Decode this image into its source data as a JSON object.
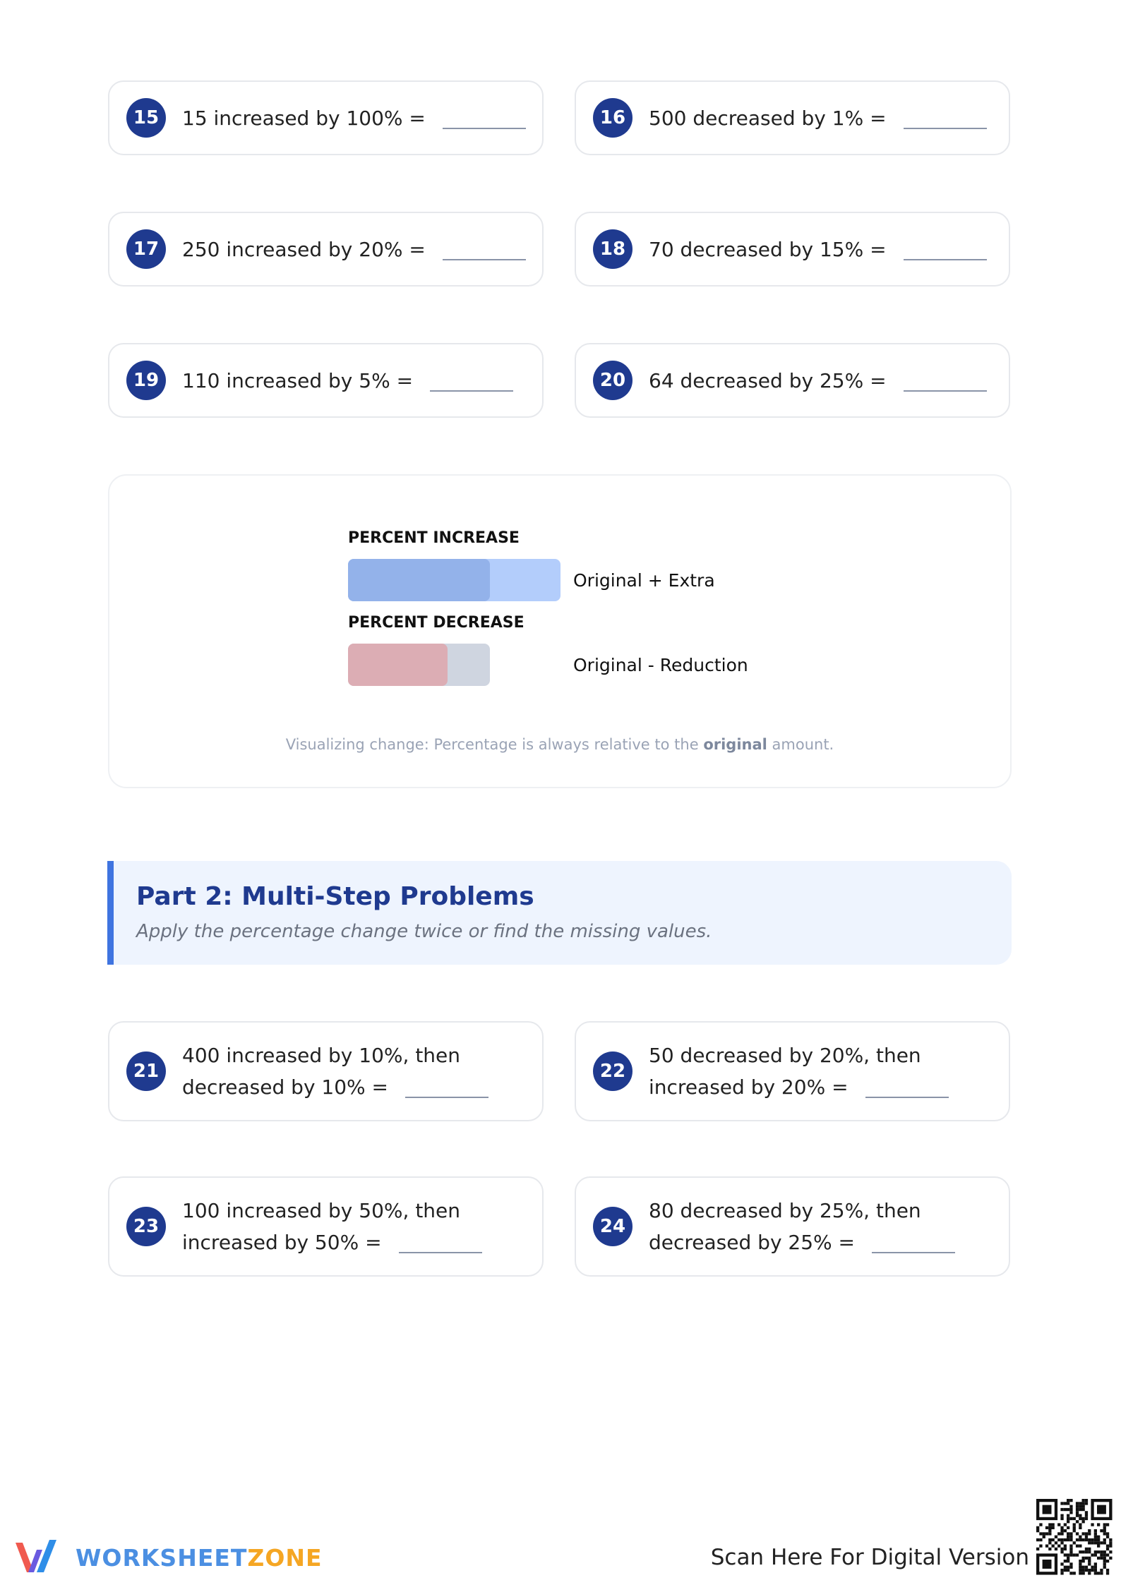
{
  "problems_part1": [
    {
      "number": "15",
      "lines": [
        "15 increased by 100% ="
      ]
    },
    {
      "number": "16",
      "lines": [
        "500 decreased by 1% ="
      ]
    },
    {
      "number": "17",
      "lines": [
        "250 increased by 20% ="
      ]
    },
    {
      "number": "18",
      "lines": [
        "70 decreased by 15% ="
      ]
    },
    {
      "number": "19",
      "lines": [
        "110 increased by 5% ="
      ]
    },
    {
      "number": "20",
      "lines": [
        "64 decreased by 25% ="
      ]
    }
  ],
  "visual": {
    "increase_label": "PERCENT INCREASE",
    "increase_text": "Original + Extra",
    "decrease_label": "PERCENT DECREASE",
    "decrease_text": "Original - Reduction",
    "caption": [
      "Visualizing change: Percentage is always relative to the ",
      "original",
      " amount."
    ]
  },
  "part2": {
    "title": "Part 2: Multi-Step Problems",
    "subtitle": "Apply the percentage change twice or find the missing values."
  },
  "problems_part2": [
    {
      "number": "21",
      "lines": [
        "400 increased by 10%, then",
        "decreased by 10% ="
      ]
    },
    {
      "number": "22",
      "lines": [
        "50 decreased by 20%, then",
        "increased by 20% ="
      ]
    },
    {
      "number": "23",
      "lines": [
        "100 increased by 50%, then",
        "increased by 50% ="
      ]
    },
    {
      "number": "24",
      "lines": [
        "80 decreased by 25%, then",
        "decreased by 25% ="
      ]
    }
  ],
  "footer": {
    "logo_a": "WORKSHEET",
    "logo_b": "ZONE",
    "scan": "Scan Here For Digital Version"
  }
}
